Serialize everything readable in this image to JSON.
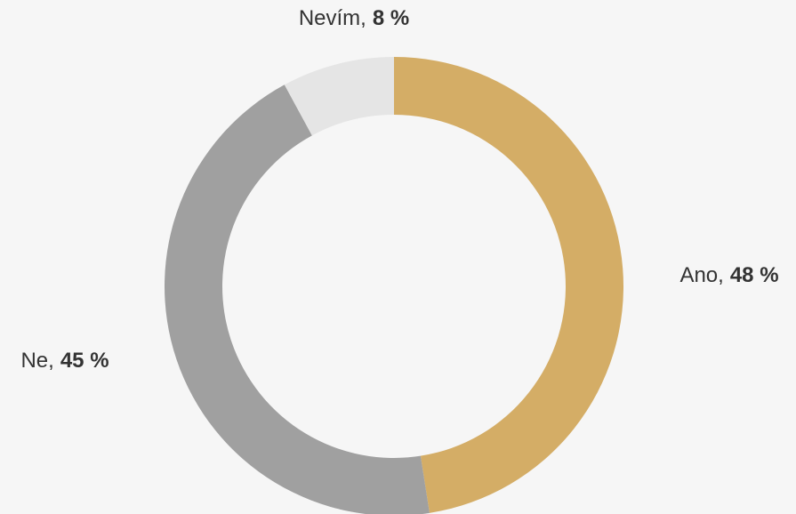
{
  "chart_data": {
    "type": "donut",
    "categories": [
      "Ano,",
      "Ne,",
      "Nevím,"
    ],
    "values": [
      48,
      45,
      8
    ],
    "value_labels": [
      "48 %",
      "45 %",
      "8 %"
    ],
    "colors": [
      "#d4ad66",
      "#a0a0a0",
      "#e5e5e5"
    ]
  }
}
